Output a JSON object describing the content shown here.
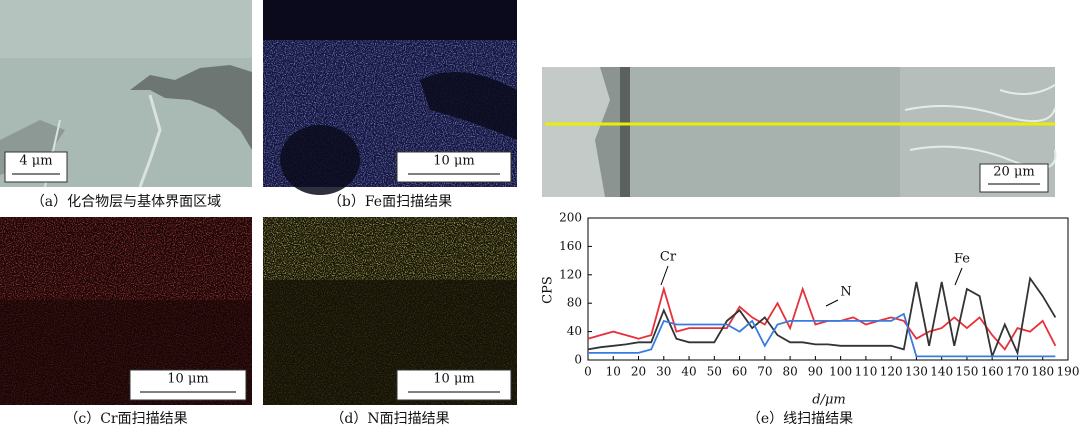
{
  "panels": [
    {
      "caption": "（a）化合物层与基体界面区域",
      "scale_bar": "4 μm"
    },
    {
      "caption": "（b）Fe面扫描结果",
      "scale_bar": "10 μm"
    },
    {
      "caption": "（c）Cr面扫描结果",
      "scale_bar": "10 μm"
    },
    {
      "caption": "（d）N面扫描结果",
      "scale_bar": "10 μm"
    },
    {
      "caption": "（e）线扫描结果",
      "scale_bar": "20 μm"
    }
  ],
  "chart_data": {
    "type": "line",
    "xlabel": "d/μm",
    "ylabel": "CPS",
    "annotations": [
      "Cr",
      "N",
      "Fe"
    ],
    "x": [
      0,
      5,
      10,
      15,
      20,
      25,
      30,
      35,
      40,
      45,
      50,
      55,
      60,
      65,
      70,
      75,
      80,
      85,
      90,
      95,
      100,
      105,
      110,
      115,
      120,
      125,
      130,
      135,
      140,
      145,
      150,
      155,
      160,
      165,
      170,
      175,
      180,
      185
    ],
    "series": [
      {
        "name": "Cr",
        "color": "#e8303a",
        "values": [
          30,
          35,
          40,
          35,
          30,
          35,
          100,
          40,
          45,
          45,
          45,
          45,
          75,
          60,
          50,
          80,
          45,
          100,
          50,
          55,
          55,
          60,
          50,
          55,
          60,
          55,
          30,
          40,
          45,
          60,
          45,
          60,
          35,
          15,
          45,
          40,
          55,
          20
        ]
      },
      {
        "name": "Fe",
        "color": "#333333",
        "values": [
          15,
          18,
          20,
          22,
          25,
          25,
          70,
          30,
          25,
          25,
          25,
          55,
          70,
          45,
          60,
          35,
          25,
          25,
          22,
          22,
          20,
          20,
          20,
          20,
          20,
          15,
          110,
          20,
          110,
          20,
          100,
          90,
          5,
          50,
          10,
          115,
          90,
          60
        ]
      },
      {
        "name": "N",
        "color": "#3a7be0",
        "values": [
          10,
          10,
          10,
          10,
          10,
          15,
          55,
          50,
          50,
          50,
          50,
          50,
          40,
          55,
          20,
          50,
          55,
          55,
          55,
          55,
          55,
          55,
          55,
          55,
          55,
          65,
          5,
          5,
          5,
          5,
          5,
          5,
          5,
          5,
          5,
          5,
          5,
          5
        ]
      }
    ],
    "xlim": [
      0,
      190
    ],
    "ylim": [
      0,
      200
    ],
    "xticks": [
      0,
      10,
      20,
      30,
      40,
      50,
      60,
      70,
      80,
      90,
      100,
      110,
      120,
      130,
      140,
      150,
      160,
      170,
      180,
      190
    ],
    "yticks": [
      0,
      40,
      80,
      120,
      160,
      200
    ]
  }
}
